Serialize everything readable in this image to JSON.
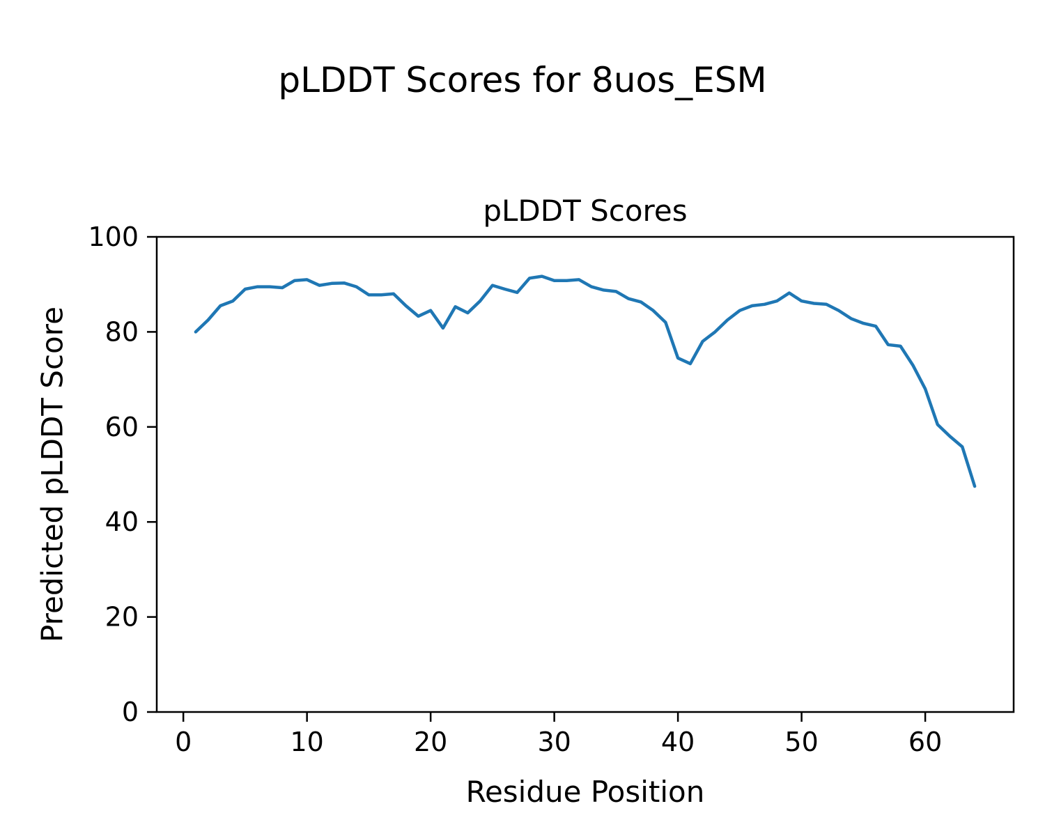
{
  "page": {
    "suptitle": "pLDDT Scores for 8uos_ESM"
  },
  "chart_data": {
    "type": "line",
    "title": "pLDDT Scores",
    "xlabel": "Residue Position",
    "ylabel": "Predicted pLDDT Score",
    "xlim": [
      -2.15,
      67.15
    ],
    "ylim": [
      0,
      100
    ],
    "x_ticks": [
      0,
      10,
      20,
      30,
      40,
      50,
      60
    ],
    "y_ticks": [
      0,
      20,
      40,
      60,
      80,
      100
    ],
    "grid": false,
    "legend_position": "none",
    "line_color": "#1f77b4",
    "series": [
      {
        "name": "pLDDT",
        "x": [
          1,
          2,
          3,
          4,
          5,
          6,
          7,
          8,
          9,
          10,
          11,
          12,
          13,
          14,
          15,
          16,
          17,
          18,
          19,
          20,
          21,
          22,
          23,
          24,
          25,
          26,
          27,
          28,
          29,
          30,
          31,
          32,
          33,
          34,
          35,
          36,
          37,
          38,
          39,
          40,
          41,
          42,
          43,
          44,
          45,
          46,
          47,
          48,
          49,
          50,
          51,
          52,
          53,
          54,
          55,
          56,
          57,
          58,
          59,
          60,
          61,
          62,
          63,
          64
        ],
        "y": [
          80.0,
          82.5,
          85.5,
          86.5,
          89.0,
          89.5,
          89.5,
          89.3,
          90.8,
          91.0,
          89.8,
          90.2,
          90.3,
          89.5,
          87.8,
          87.8,
          88.0,
          85.5,
          83.3,
          84.5,
          80.8,
          85.3,
          84.0,
          86.5,
          89.8,
          89.0,
          88.3,
          91.3,
          91.7,
          90.8,
          90.8,
          91.0,
          89.5,
          88.8,
          88.5,
          87.0,
          86.3,
          84.5,
          82.0,
          74.5,
          73.3,
          78.0,
          80.0,
          82.5,
          84.5,
          85.5,
          85.8,
          86.5,
          88.2,
          86.5,
          86.0,
          85.8,
          84.5,
          82.8,
          81.8,
          81.2,
          77.3,
          77.0,
          73.0,
          68.0,
          60.5,
          58.0,
          55.8,
          47.5
        ]
      }
    ]
  }
}
